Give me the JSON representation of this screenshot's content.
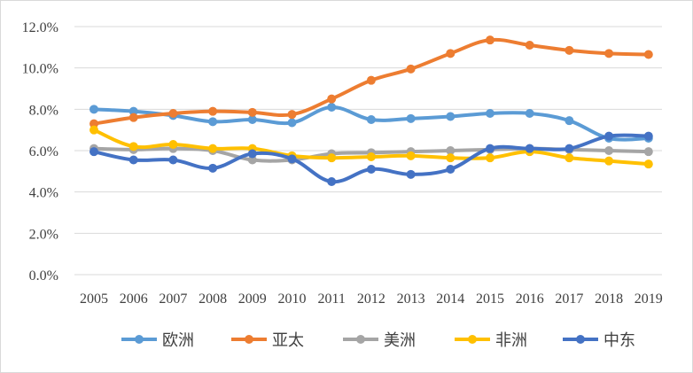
{
  "chart_data": {
    "type": "line",
    "title": "",
    "xlabel": "",
    "ylabel": "",
    "categories": [
      "2005",
      "2006",
      "2007",
      "2008",
      "2009",
      "2010",
      "2011",
      "2012",
      "2013",
      "2014",
      "2015",
      "2016",
      "2017",
      "2018",
      "2019"
    ],
    "ylim": [
      0,
      12
    ],
    "y_ticks": [
      "0.0%",
      "2.0%",
      "4.0%",
      "6.0%",
      "8.0%",
      "10.0%",
      "12.0%"
    ],
    "grid": true,
    "legend_position": "bottom",
    "series": [
      {
        "name": "欧洲",
        "color": "#5B9BD5",
        "values": [
          8.0,
          7.9,
          7.7,
          7.4,
          7.5,
          7.35,
          8.1,
          7.5,
          7.55,
          7.65,
          7.8,
          7.8,
          7.45,
          6.6,
          6.6
        ]
      },
      {
        "name": "亚太",
        "color": "#ED7D31",
        "values": [
          7.3,
          7.6,
          7.8,
          7.9,
          7.85,
          7.75,
          8.5,
          9.4,
          9.95,
          10.7,
          11.35,
          11.1,
          10.85,
          10.7,
          10.65
        ]
      },
      {
        "name": "美洲",
        "color": "#A5A5A5",
        "values": [
          6.1,
          6.05,
          6.1,
          6.0,
          5.55,
          5.55,
          5.85,
          5.9,
          5.95,
          6.0,
          6.05,
          6.1,
          6.05,
          6.0,
          5.95
        ]
      },
      {
        "name": "非洲",
        "color": "#FFC000",
        "values": [
          7.0,
          6.2,
          6.3,
          6.1,
          6.1,
          5.75,
          5.65,
          5.7,
          5.75,
          5.65,
          5.65,
          5.95,
          5.65,
          5.5,
          5.35
        ]
      },
      {
        "name": "中东",
        "color": "#4472C4",
        "values": [
          5.95,
          5.55,
          5.55,
          5.15,
          5.85,
          5.6,
          4.5,
          5.1,
          4.85,
          5.1,
          6.1,
          6.1,
          6.1,
          6.7,
          6.7
        ]
      }
    ]
  }
}
